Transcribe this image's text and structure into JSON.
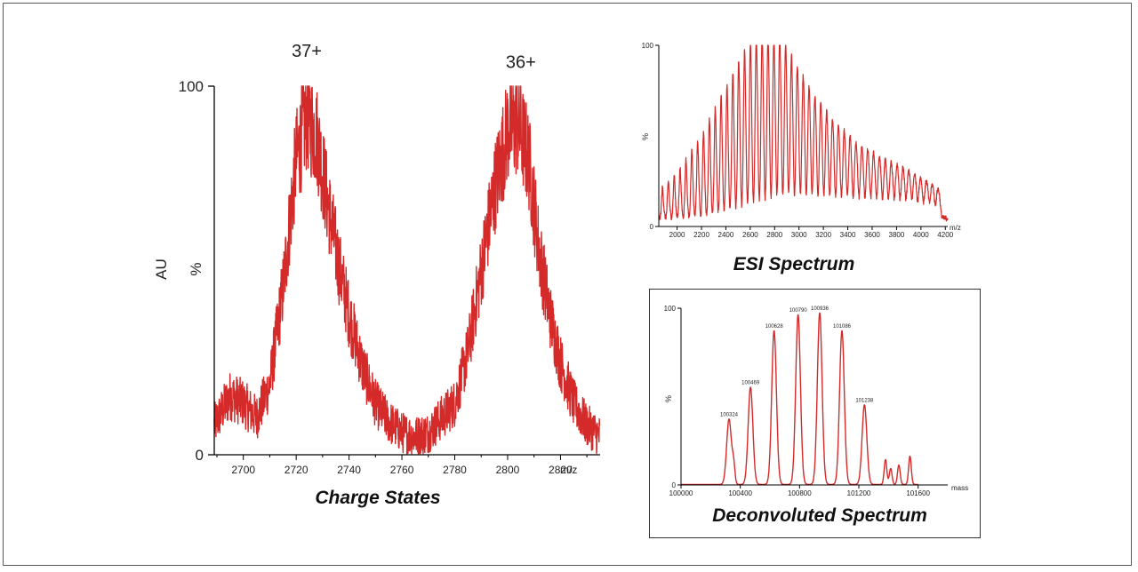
{
  "colors": {
    "trace": "#d42a2a",
    "axis": "#000000",
    "frame": "#5a5a5a"
  },
  "chart_data": [
    {
      "type": "line",
      "title": "Charge States",
      "ylabel_outer": "AU",
      "ylabel": "%",
      "x_unit": "m/z",
      "xlim": [
        2689,
        2835
      ],
      "ylim": [
        0,
        100
      ],
      "xticks": [
        2700,
        2720,
        2740,
        2760,
        2780,
        2800,
        2820
      ],
      "yticks": [
        0,
        100
      ],
      "annotations": [
        {
          "text": "37+",
          "x": 2724,
          "y": 108
        },
        {
          "text": "36+",
          "x": 2805,
          "y": 105
        }
      ],
      "envelope": [
        [
          2689,
          8
        ],
        [
          2695,
          16
        ],
        [
          2700,
          14
        ],
        [
          2705,
          10
        ],
        [
          2710,
          19
        ],
        [
          2715,
          45
        ],
        [
          2720,
          80
        ],
        [
          2724,
          92
        ],
        [
          2728,
          86
        ],
        [
          2732,
          68
        ],
        [
          2736,
          52
        ],
        [
          2740,
          38
        ],
        [
          2745,
          24
        ],
        [
          2750,
          14
        ],
        [
          2755,
          9
        ],
        [
          2760,
          6
        ],
        [
          2765,
          5
        ],
        [
          2770,
          6
        ],
        [
          2775,
          10
        ],
        [
          2780,
          14
        ],
        [
          2785,
          28
        ],
        [
          2790,
          50
        ],
        [
          2795,
          72
        ],
        [
          2800,
          88
        ],
        [
          2804,
          90
        ],
        [
          2808,
          80
        ],
        [
          2812,
          55
        ],
        [
          2816,
          38
        ],
        [
          2820,
          25
        ],
        [
          2825,
          14
        ],
        [
          2830,
          8
        ],
        [
          2835,
          5
        ]
      ]
    },
    {
      "type": "line",
      "title": "ESI Spectrum",
      "ylabel": "%",
      "x_unit": "m/z",
      "xlim": [
        1850,
        4220
      ],
      "ylim": [
        0,
        100
      ],
      "xticks": [
        2000,
        2200,
        2400,
        2600,
        2800,
        3000,
        3200,
        3400,
        3600,
        3800,
        4000,
        4200
      ],
      "yticks": [
        0,
        100
      ],
      "peaks_start": 1880,
      "peaks_end": 4140,
      "peaks_count": 48,
      "baseline": 3,
      "envelope": [
        [
          1850,
          15
        ],
        [
          2000,
          25
        ],
        [
          2200,
          45
        ],
        [
          2400,
          72
        ],
        [
          2550,
          92
        ],
        [
          2650,
          100
        ],
        [
          2750,
          100
        ],
        [
          2850,
          99
        ],
        [
          2950,
          88
        ],
        [
          3100,
          70
        ],
        [
          3300,
          52
        ],
        [
          3500,
          40
        ],
        [
          3700,
          32
        ],
        [
          3900,
          26
        ],
        [
          4100,
          18
        ],
        [
          4220,
          12
        ]
      ]
    },
    {
      "type": "line",
      "title": "Deconvoluted Spectrum",
      "ylabel": "%",
      "x_unit": "mass",
      "xlim": [
        100000,
        101800
      ],
      "ylim": [
        0,
        100
      ],
      "xticks": [
        100000,
        100400,
        100800,
        101200,
        101600
      ],
      "yticks": [
        0,
        100
      ],
      "peaks": [
        {
          "mass": 100324,
          "y": 37,
          "label": "100324"
        },
        {
          "mass": 100469,
          "y": 55,
          "label": "100469"
        },
        {
          "mass": 100628,
          "y": 87,
          "label": "100628"
        },
        {
          "mass": 100790,
          "y": 96,
          "label": "100790"
        },
        {
          "mass": 100936,
          "y": 97,
          "label": "100936"
        },
        {
          "mass": 101086,
          "y": 87,
          "label": "101086"
        },
        {
          "mass": 101238,
          "y": 45,
          "label": "101238"
        },
        {
          "mass": 100355,
          "y": 10,
          "label": ""
        },
        {
          "mass": 101380,
          "y": 14,
          "label": ""
        },
        {
          "mass": 101415,
          "y": 9,
          "label": ""
        },
        {
          "mass": 101470,
          "y": 11,
          "label": ""
        },
        {
          "mass": 101545,
          "y": 16,
          "label": ""
        }
      ]
    }
  ]
}
